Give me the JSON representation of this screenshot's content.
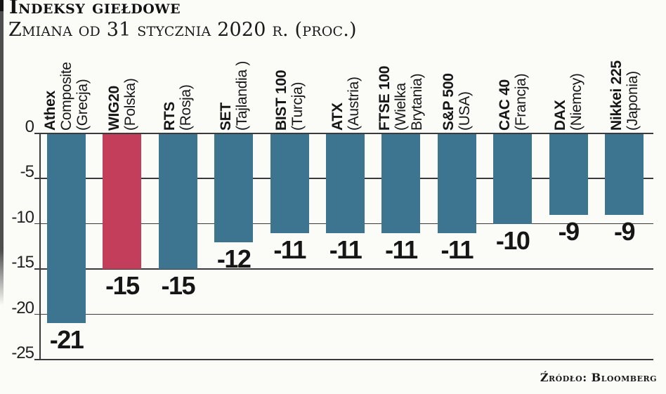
{
  "page": {
    "title": "Indeksy giełdowe",
    "subtitle": "Zmiana od 31 stycznia 2020 r. (proc.)",
    "source": "Źródło: Bloomberg"
  },
  "colors": {
    "bar": "#3d748f",
    "bar_highlight": "#c23e5b",
    "grid": "#3a3a3a",
    "background": "#fbfbf8",
    "text": "#161616"
  },
  "chart_data": {
    "type": "bar",
    "title": "Indeksy giełdowe",
    "subtitle": "Zmiana od 31 stycznia 2020 r. (proc.)",
    "source": "Źródło: Bloomberg",
    "xlabel": "",
    "ylabel": "",
    "ylim": [
      -25,
      0
    ],
    "yticks": [
      0,
      -5,
      -10,
      -15,
      -20,
      -25
    ],
    "grid": true,
    "legend": false,
    "categories": [
      "Athex Composite (Grecja)",
      "WIG20 (Polska)",
      "RTS (Rosja)",
      "SET (Tajlandia )",
      "BIST 100 (Turcja)",
      "ATX (Austria)",
      "FTSE 100 (Wielka Brytania)",
      "S&P 500 (USA)",
      "CAC 40 (Francja)",
      "DAX (Niemcy)",
      "Nikkei 225 (Japonia)"
    ],
    "values": [
      -21,
      -15,
      -15,
      -12,
      -11,
      -11,
      -11,
      -11,
      -10,
      -9,
      -9
    ],
    "highlighted_category": "WIG20 (Polska)",
    "bars": [
      {
        "value": -21,
        "label": "-21",
        "highlight": false,
        "lines": [
          {
            "text": "Athex",
            "bold": true
          },
          {
            "text": "Composite",
            "bold": false
          },
          {
            "text": "(Grecja)",
            "bold": false
          }
        ]
      },
      {
        "value": -15,
        "label": "-15",
        "highlight": true,
        "lines": [
          {
            "text": "WIG20",
            "bold": true
          },
          {
            "text": "(Polska)",
            "bold": false
          }
        ]
      },
      {
        "value": -15,
        "label": "-15",
        "highlight": false,
        "lines": [
          {
            "text": "RTS",
            "bold": true
          },
          {
            "text": "(Rosja)",
            "bold": false
          }
        ]
      },
      {
        "value": -12,
        "label": "-12",
        "highlight": false,
        "lines": [
          {
            "text": "SET",
            "bold": true
          },
          {
            "text": "(Tajlandia )",
            "bold": false
          }
        ]
      },
      {
        "value": -11,
        "label": "-11",
        "highlight": false,
        "lines": [
          {
            "text": "BIST 100",
            "bold": true
          },
          {
            "text": "(Turcja)",
            "bold": false
          }
        ]
      },
      {
        "value": -11,
        "label": "-11",
        "highlight": false,
        "lines": [
          {
            "text": "ATX",
            "bold": true
          },
          {
            "text": "(Austria)",
            "bold": false
          }
        ]
      },
      {
        "value": -11,
        "label": "-11",
        "highlight": false,
        "lines": [
          {
            "text": "FTSE 100",
            "bold": true
          },
          {
            "text": "(Wielka",
            "bold": false
          },
          {
            "text": "Brytania)",
            "bold": false
          }
        ]
      },
      {
        "value": -11,
        "label": "-11",
        "highlight": false,
        "lines": [
          {
            "text": "S&P 500",
            "bold": true
          },
          {
            "text": "(USA)",
            "bold": false
          }
        ]
      },
      {
        "value": -10,
        "label": "-10",
        "highlight": false,
        "lines": [
          {
            "text": "CAC 40",
            "bold": true
          },
          {
            "text": "(Francja)",
            "bold": false
          }
        ]
      },
      {
        "value": -9,
        "label": "-9",
        "highlight": false,
        "lines": [
          {
            "text": "DAX",
            "bold": true
          },
          {
            "text": "(Niemcy)",
            "bold": false
          }
        ]
      },
      {
        "value": -9,
        "label": "-9",
        "highlight": false,
        "lines": [
          {
            "text": "Nikkei 225",
            "bold": true
          },
          {
            "text": "(Japonia)",
            "bold": false
          }
        ]
      }
    ]
  }
}
